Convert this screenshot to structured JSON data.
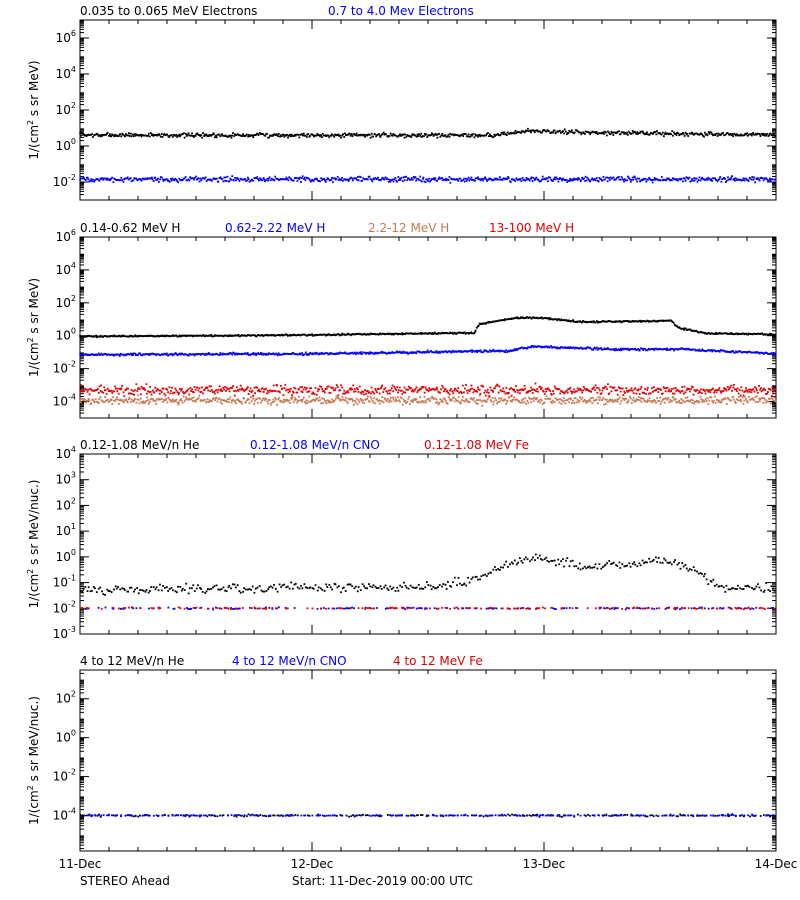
{
  "footer": {
    "spacecraft": "STEREO Ahead",
    "start": "Start: 11-Dec-2019 00:00 UTC"
  },
  "x_axis": {
    "tick_labels": [
      "11-Dec",
      "12-Dec",
      "13-Dec",
      "14-Dec"
    ]
  },
  "chart_data": [
    {
      "type": "scatter",
      "title": "",
      "ylabel": "1/(cm² s sr MeV)",
      "y_scale": "log",
      "ylim": [
        0.001,
        10000000
      ],
      "xlim": [
        0,
        3
      ],
      "x_ticks": [
        0,
        1,
        2,
        3
      ],
      "y_tick_labels": [
        {
          "value": 0.01,
          "base": "10",
          "exp": "-2"
        },
        {
          "value": 1,
          "base": "10",
          "exp": "0"
        },
        {
          "value": 100,
          "base": "10",
          "exp": "2"
        },
        {
          "value": 10000,
          "base": "10",
          "exp": "4"
        },
        {
          "value": 1000000,
          "base": "10",
          "exp": "6"
        }
      ],
      "series": [
        {
          "name": "0.035 to 0.065 MeV Electrons",
          "color": "#000000",
          "profile": [
            [
              0,
              4
            ],
            [
              1.8,
              4
            ],
            [
              1.93,
              7
            ],
            [
              2.1,
              6
            ],
            [
              3,
              4
            ]
          ],
          "spread": 0.1
        },
        {
          "name": "0.7 to 4.0 Mev Electrons",
          "color": "#0000ff",
          "profile": [
            [
              0,
              0.014
            ],
            [
              3,
              0.014
            ]
          ],
          "spread": 0.12
        }
      ]
    },
    {
      "type": "scatter",
      "title": "",
      "ylabel": "1/(cm² s sr MeV)",
      "y_scale": "log",
      "ylim": [
        1e-05,
        1000000
      ],
      "xlim": [
        0,
        3
      ],
      "x_ticks": [
        0,
        1,
        2,
        3
      ],
      "y_tick_labels": [
        {
          "value": 0.0001,
          "base": "10",
          "exp": "-4"
        },
        {
          "value": 0.01,
          "base": "10",
          "exp": "-2"
        },
        {
          "value": 1,
          "base": "10",
          "exp": "0"
        },
        {
          "value": 100,
          "base": "10",
          "exp": "2"
        },
        {
          "value": 10000,
          "base": "10",
          "exp": "4"
        },
        {
          "value": 1000000,
          "base": "10",
          "exp": "6"
        }
      ],
      "series": [
        {
          "name": "0.14-0.62 MeV H",
          "color": "#000000",
          "profile": [
            [
              0,
              0.9
            ],
            [
              1,
              1.1
            ],
            [
              1.7,
              1.5
            ],
            [
              1.72,
              5
            ],
            [
              1.88,
              12
            ],
            [
              2,
              12
            ],
            [
              2.15,
              7
            ],
            [
              2.55,
              8
            ],
            [
              2.58,
              3
            ],
            [
              2.7,
              1.4
            ],
            [
              3,
              1.2
            ]
          ],
          "spread": 0.04
        },
        {
          "name": "0.62-2.22 MeV H",
          "color": "#0000ff",
          "profile": [
            [
              0,
              0.07
            ],
            [
              1,
              0.08
            ],
            [
              1.85,
              0.12
            ],
            [
              1.95,
              0.22
            ],
            [
              2.3,
              0.15
            ],
            [
              2.6,
              0.15
            ],
            [
              3,
              0.08
            ]
          ],
          "spread": 0.06
        },
        {
          "name": "2.2-12 MeV H",
          "color": "#c87850",
          "profile": [
            [
              0,
              0.00012
            ],
            [
              3,
              0.00012
            ]
          ],
          "spread": 0.2
        },
        {
          "name": "13-100 MeV H",
          "color": "#e00000",
          "profile": [
            [
              0,
              0.0005
            ],
            [
              3,
              0.0005
            ]
          ],
          "spread": 0.25
        }
      ]
    },
    {
      "type": "scatter",
      "title": "",
      "ylabel": "1/(cm² s sr MeV/nuc.)",
      "y_scale": "log",
      "ylim": [
        0.001,
        10000
      ],
      "xlim": [
        0,
        3
      ],
      "x_ticks": [
        0,
        1,
        2,
        3
      ],
      "y_tick_labels": [
        {
          "value": 0.001,
          "base": "10",
          "exp": "-3"
        },
        {
          "value": 0.01,
          "base": "10",
          "exp": "-2"
        },
        {
          "value": 0.1,
          "base": "10",
          "exp": "-1"
        },
        {
          "value": 1,
          "base": "10",
          "exp": "0"
        },
        {
          "value": 10,
          "base": "10",
          "exp": "1"
        },
        {
          "value": 100,
          "base": "10",
          "exp": "2"
        },
        {
          "value": 1000,
          "base": "10",
          "exp": "3"
        },
        {
          "value": 10000,
          "base": "10",
          "exp": "4"
        }
      ],
      "series": [
        {
          "name": "0.12-1.08 MeV/n He",
          "color": "#000000",
          "profile": [
            [
              0,
              0.05
            ],
            [
              1.55,
              0.07
            ],
            [
              1.7,
              0.15
            ],
            [
              1.88,
              0.6
            ],
            [
              2,
              0.9
            ],
            [
              2.2,
              0.4
            ],
            [
              2.35,
              0.5
            ],
            [
              2.5,
              0.8
            ],
            [
              2.65,
              0.3
            ],
            [
              2.75,
              0.07
            ],
            [
              3,
              0.06
            ]
          ],
          "spread": 0.15
        },
        {
          "name": "0.12-1.08 MeV/n CNO",
          "color": "#0000ff",
          "profile": [
            [
              0,
              0.01
            ],
            [
              3,
              0.01
            ]
          ],
          "spread": 0.03
        },
        {
          "name": "0.12-1.08 MeV Fe",
          "color": "#e00000",
          "profile": [
            [
              0,
              0.01
            ],
            [
              3,
              0.01
            ]
          ],
          "spread": 0.03
        }
      ]
    },
    {
      "type": "scatter",
      "title": "",
      "ylabel": "1/(cm² s sr MeV/nuc.)",
      "y_scale": "log",
      "ylim": [
        1.5e-06,
        3000
      ],
      "xlim": [
        0,
        3
      ],
      "x_ticks": [
        0,
        1,
        2,
        3
      ],
      "y_tick_labels": [
        {
          "value": 0.0001,
          "base": "10",
          "exp": "-4"
        },
        {
          "value": 0.01,
          "base": "10",
          "exp": "-2"
        },
        {
          "value": 1,
          "base": "10",
          "exp": "0"
        },
        {
          "value": 100,
          "base": "10",
          "exp": "2"
        }
      ],
      "series": [
        {
          "name": "4 to 12 MeV/n He",
          "color": "#000000",
          "profile": [
            [
              0,
              0.0001
            ],
            [
              3,
              0.0001
            ]
          ],
          "spread": 0.05
        },
        {
          "name": "4 to 12 MeV/n CNO",
          "color": "#0000ff",
          "profile": [
            [
              0,
              0.0001
            ],
            [
              3,
              0.0001
            ]
          ],
          "spread": 0.02
        },
        {
          "name": "4 to 12 MeV Fe",
          "color": "#e00000",
          "profile": [],
          "spread": 0
        }
      ]
    }
  ]
}
